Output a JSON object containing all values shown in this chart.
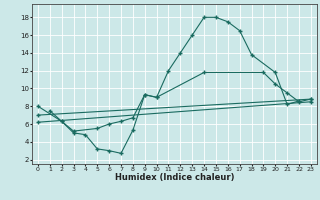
{
  "xlabel": "Humidex (Indice chaleur)",
  "bg_color": "#cce8e8",
  "line_color": "#1a6b60",
  "grid_color": "#ffffff",
  "xlim": [
    -0.5,
    23.5
  ],
  "ylim": [
    1.5,
    19.5
  ],
  "xticks": [
    0,
    1,
    2,
    3,
    4,
    5,
    6,
    7,
    8,
    9,
    10,
    11,
    12,
    13,
    14,
    15,
    16,
    17,
    18,
    19,
    20,
    21,
    22,
    23
  ],
  "yticks": [
    2,
    4,
    6,
    8,
    10,
    12,
    14,
    16,
    18
  ],
  "line1_x": [
    1,
    2,
    3,
    4,
    5,
    6,
    7,
    8,
    9,
    10,
    11,
    12,
    13,
    14,
    15,
    16,
    17,
    18,
    20,
    21,
    22
  ],
  "line1_y": [
    7.5,
    6.3,
    5.0,
    4.8,
    3.2,
    3.0,
    2.7,
    5.3,
    9.3,
    9.0,
    12.0,
    14.0,
    16.0,
    18.0,
    18.0,
    17.5,
    16.5,
    13.8,
    11.8,
    8.2,
    8.6
  ],
  "line2_x": [
    0,
    2,
    3,
    5,
    6,
    7,
    8,
    9,
    10,
    14,
    19,
    20,
    21,
    22,
    23
  ],
  "line2_y": [
    8.0,
    6.3,
    5.2,
    5.5,
    6.0,
    6.3,
    6.7,
    9.3,
    9.0,
    11.8,
    11.8,
    10.5,
    9.5,
    8.5,
    8.8
  ],
  "line3_x": [
    0,
    23
  ],
  "line3_y": [
    7.0,
    8.8
  ],
  "line4_x": [
    0,
    23
  ],
  "line4_y": [
    6.2,
    8.5
  ]
}
